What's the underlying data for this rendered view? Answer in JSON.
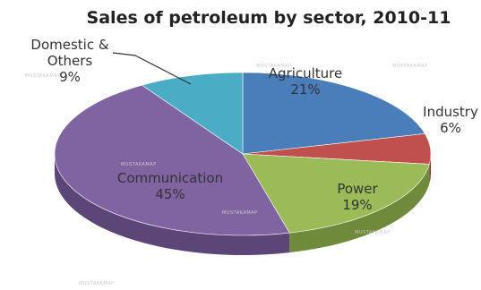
{
  "chart_data": {
    "type": "pie",
    "title": "Sales of petroleum by sector, 2010-11",
    "style": "3d",
    "categories": [
      "Agriculture",
      "Industry",
      "Power",
      "Communication",
      "Domestic & Others"
    ],
    "values": [
      21,
      6,
      19,
      45,
      9
    ],
    "labels": [
      {
        "lines": [
          "Agriculture",
          "21%"
        ]
      },
      {
        "lines": [
          "Industry",
          "6%"
        ]
      },
      {
        "lines": [
          "Power",
          "19%"
        ]
      },
      {
        "lines": [
          "Communication",
          "45%"
        ]
      },
      {
        "lines": [
          "Domestic &",
          "Others",
          "9%"
        ]
      }
    ],
    "colors": [
      "#4a7ebb",
      "#c0504d",
      "#9bbb59",
      "#8064a2",
      "#4bacc6"
    ],
    "side_colors": [
      "#2f5a8c",
      "#8e3533",
      "#6e8a3a",
      "#5b4677",
      "#2f7f94"
    ],
    "watermark": "MUSTAKAMAP"
  }
}
